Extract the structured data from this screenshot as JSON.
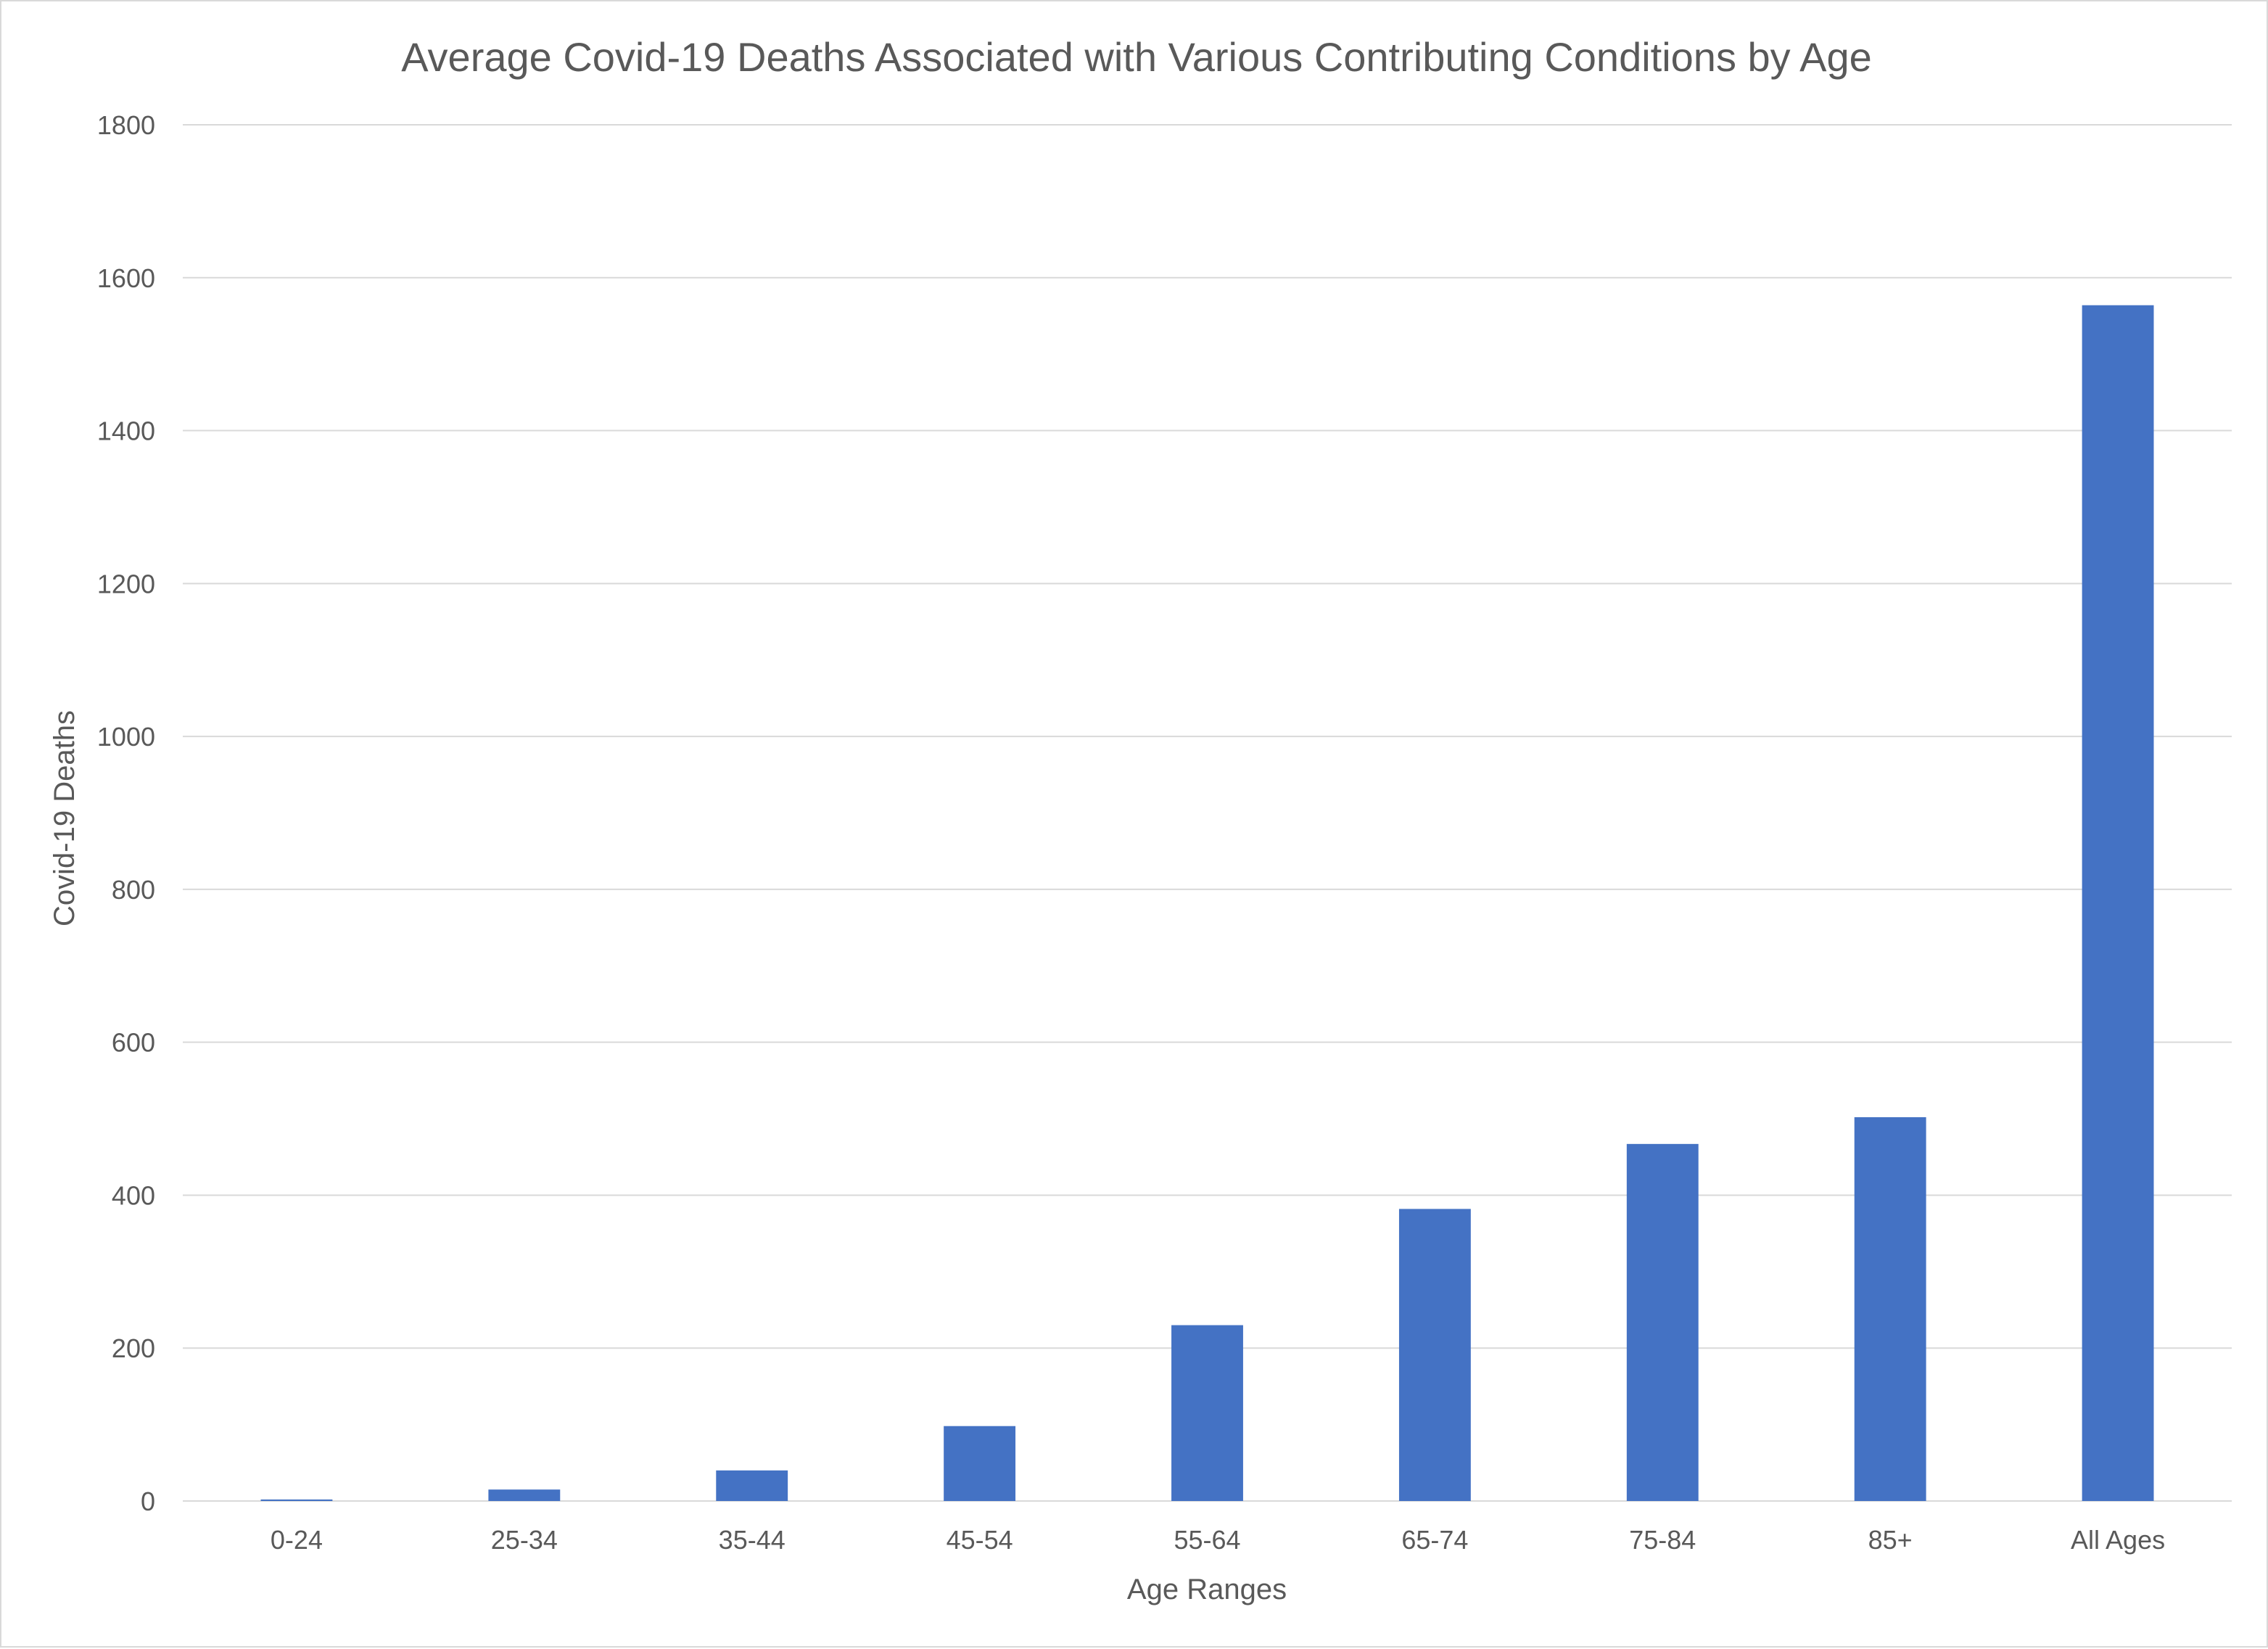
{
  "chart_data": {
    "type": "bar",
    "title": "Average Covid-19 Deaths Associated with Various Contributing Conditions by Age",
    "xlabel": "Age Ranges",
    "ylabel": "Covid-19 Deaths",
    "categories": [
      "0-24",
      "25-34",
      "35-44",
      "45-54",
      "55-64",
      "65-74",
      "75-84",
      "85+",
      "All Ages"
    ],
    "values": [
      2,
      15,
      40,
      98,
      230,
      382,
      467,
      502,
      1564
    ],
    "ylim": [
      0,
      1800
    ],
    "yticks": [
      "0",
      "200",
      "400",
      "600",
      "800",
      "1000",
      "1200",
      "1400",
      "1600",
      "1800"
    ],
    "grid": true,
    "legend": "none",
    "bar_color": "#4472C4"
  }
}
